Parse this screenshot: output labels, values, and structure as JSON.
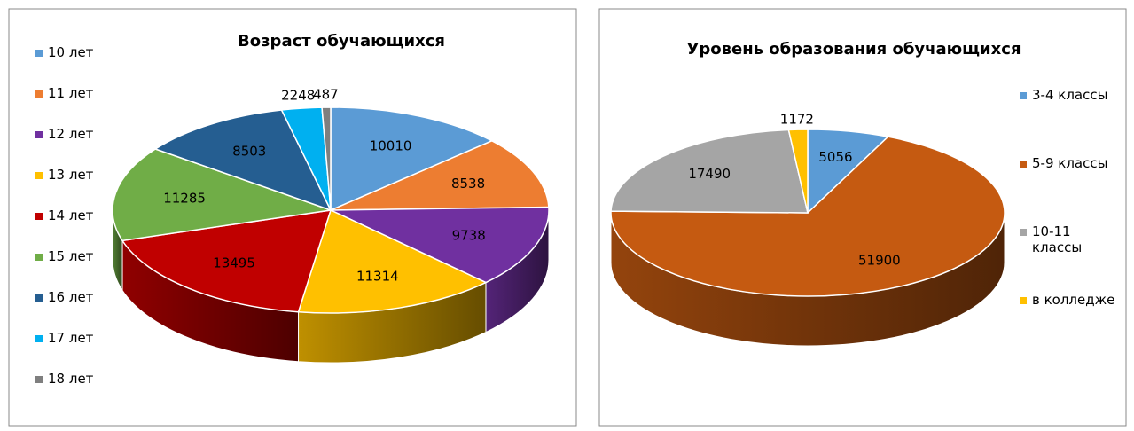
{
  "chart_data": [
    {
      "type": "pie",
      "title": "Возраст обучающихся",
      "categories": [
        "10 лет",
        "11 лет",
        "12 лет",
        "13 лет",
        "14 лет",
        "15 лет",
        "16 лет",
        "17 лет",
        "18 лет"
      ],
      "values": [
        10010,
        8538,
        9738,
        11314,
        13495,
        11285,
        8503,
        2248,
        487
      ],
      "colors": [
        "#5b9bd5",
        "#ed7d31",
        "#7030a0",
        "#ffc000",
        "#c00000",
        "#70ad47",
        "#255e91",
        "#00b0f0",
        "#7f7f7f"
      ],
      "legend": "left"
    },
    {
      "type": "pie",
      "title": "Уровень образования обучающихся",
      "categories": [
        "3-4 классы",
        "5-9 классы",
        "10-11 классы",
        "в колледже"
      ],
      "values": [
        5056,
        51900,
        17490,
        1172
      ],
      "colors": [
        "#5b9bd5",
        "#c55a11",
        "#a5a5a5",
        "#ffc000"
      ],
      "legend": "right"
    }
  ]
}
